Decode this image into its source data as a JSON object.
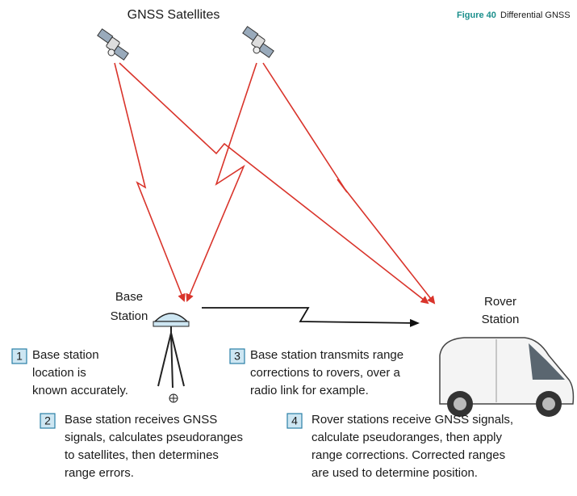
{
  "title": "GNSS Satellites",
  "figure": {
    "label": "Figure 40",
    "caption": "Differential GNSS"
  },
  "base_station": [
    "Base",
    "Station"
  ],
  "rover_station": [
    "Rover",
    "Station"
  ],
  "steps": [
    {
      "number": "1",
      "lines": [
        "Base station",
        "location is",
        "known accurately."
      ]
    },
    {
      "number": "2",
      "lines": [
        "Base station receives GNSS",
        "signals, calculates pseudoranges",
        "to satellites, then determines",
        "range errors."
      ]
    },
    {
      "number": "3",
      "lines": [
        "Base station transmits range",
        "corrections to rovers, over a",
        "radio link for example."
      ]
    },
    {
      "number": "4",
      "lines": [
        "Rover stations receive GNSS signals,",
        "calculate pseudoranges, then apply",
        "range corrections. Corrected ranges",
        "are used to determine position."
      ]
    }
  ]
}
